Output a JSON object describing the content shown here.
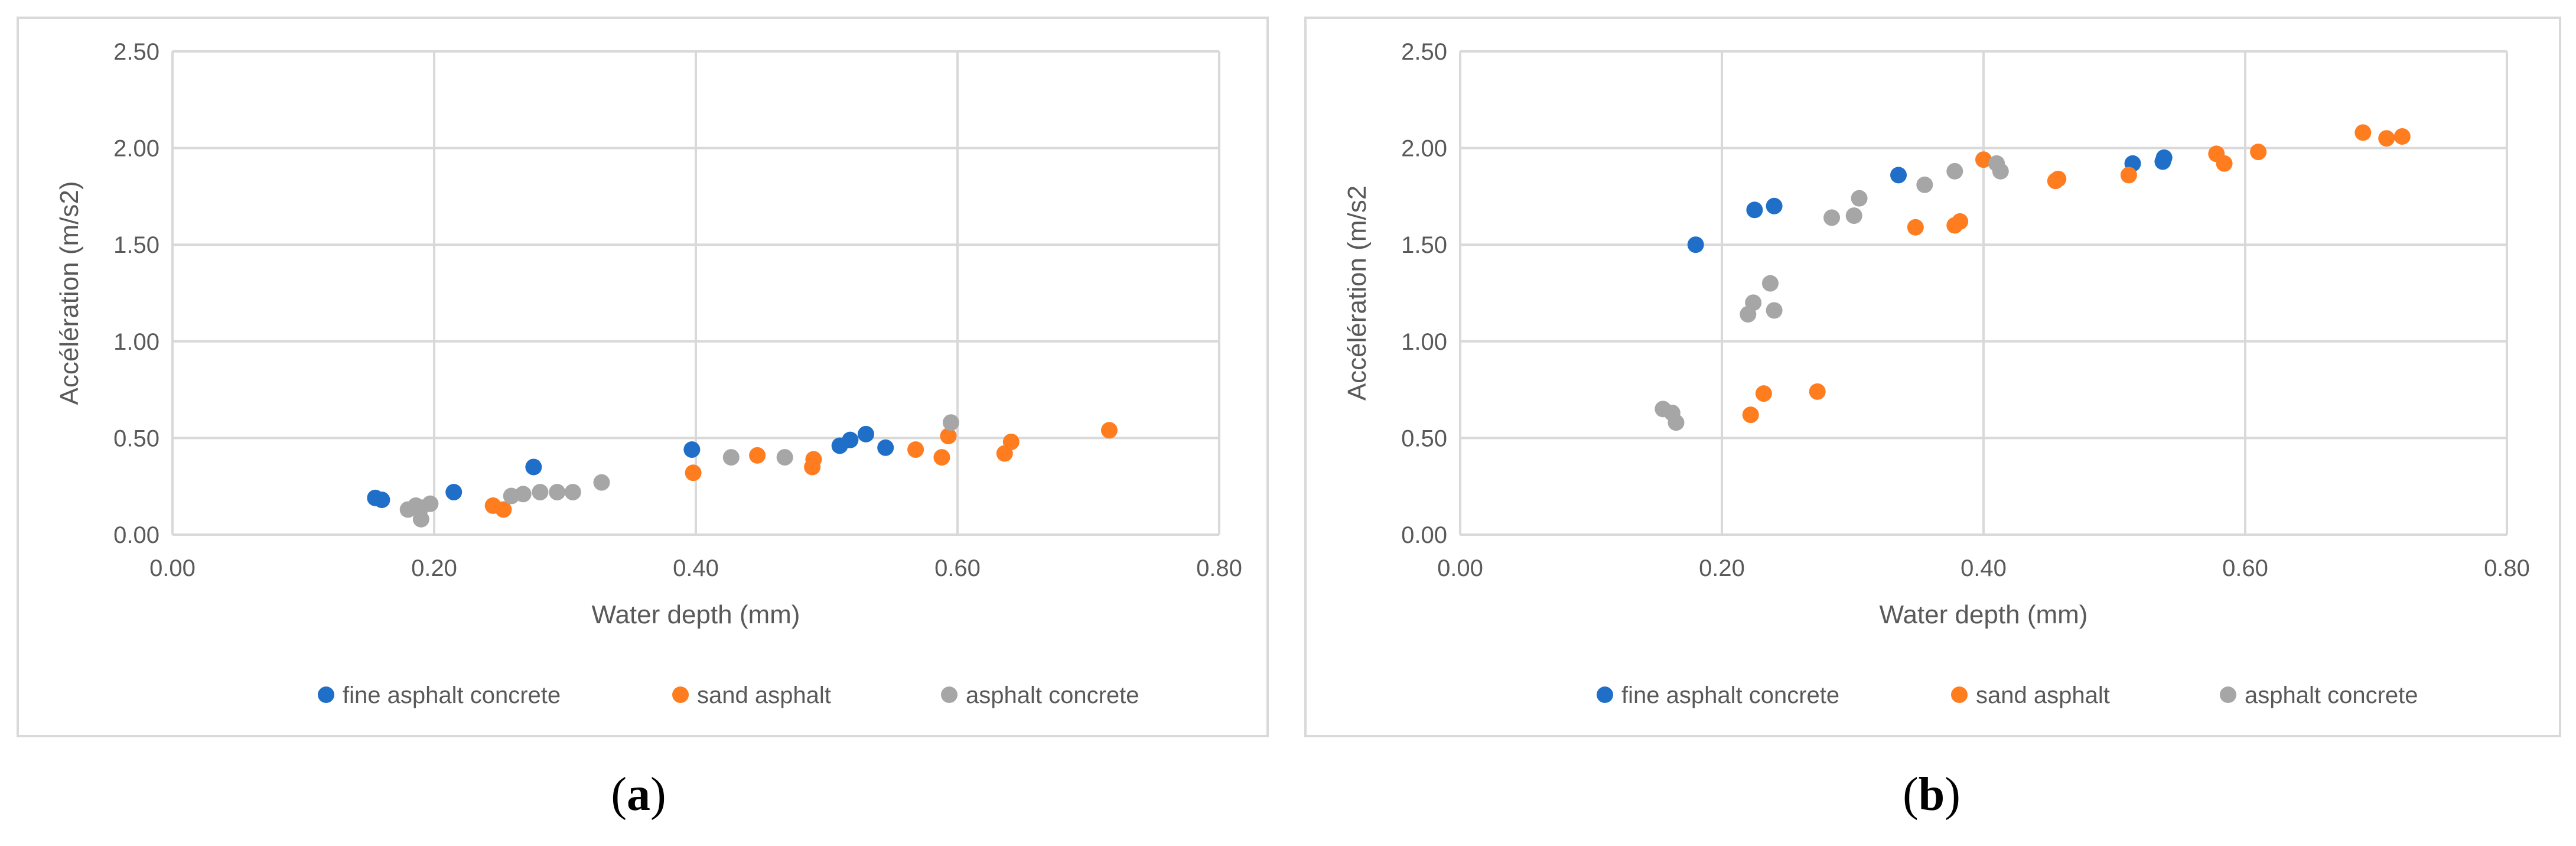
{
  "chart_data": [
    {
      "type": "scatter",
      "panel_label": "a",
      "title": "",
      "xlabel": "Water depth (mm)",
      "ylabel": "Accélération (m/s2)",
      "xlim": [
        0,
        0.8
      ],
      "ylim": [
        0,
        2.5
      ],
      "xticks": [
        "0.00",
        "0.20",
        "0.40",
        "0.60",
        "0.80"
      ],
      "yticks": [
        "0.00",
        "0.50",
        "1.00",
        "1.50",
        "2.00",
        "2.50"
      ],
      "grid": true,
      "legend_position": "bottom",
      "series": [
        {
          "name": "fine asphalt concrete",
          "color": "#1f6fc8",
          "points": [
            [
              0.155,
              0.19
            ],
            [
              0.16,
              0.18
            ],
            [
              0.215,
              0.22
            ],
            [
              0.276,
              0.35
            ],
            [
              0.397,
              0.44
            ],
            [
              0.51,
              0.46
            ],
            [
              0.518,
              0.49
            ],
            [
              0.53,
              0.52
            ],
            [
              0.545,
              0.45
            ]
          ]
        },
        {
          "name": "sand asphalt",
          "color": "#ff7c1f",
          "points": [
            [
              0.245,
              0.15
            ],
            [
              0.253,
              0.13
            ],
            [
              0.398,
              0.32
            ],
            [
              0.447,
              0.41
            ],
            [
              0.489,
              0.35
            ],
            [
              0.49,
              0.39
            ],
            [
              0.568,
              0.44
            ],
            [
              0.588,
              0.4
            ],
            [
              0.593,
              0.51
            ],
            [
              0.636,
              0.42
            ],
            [
              0.641,
              0.48
            ],
            [
              0.716,
              0.54
            ]
          ]
        },
        {
          "name": "asphalt concrete",
          "color": "#a6a6a6",
          "points": [
            [
              0.18,
              0.13
            ],
            [
              0.186,
              0.15
            ],
            [
              0.19,
              0.08
            ],
            [
              0.19,
              0.14
            ],
            [
              0.197,
              0.16
            ],
            [
              0.259,
              0.2
            ],
            [
              0.268,
              0.21
            ],
            [
              0.281,
              0.22
            ],
            [
              0.294,
              0.22
            ],
            [
              0.306,
              0.22
            ],
            [
              0.328,
              0.27
            ],
            [
              0.427,
              0.4
            ],
            [
              0.468,
              0.4
            ],
            [
              0.595,
              0.58
            ]
          ]
        }
      ]
    },
    {
      "type": "scatter",
      "panel_label": "b",
      "title": "",
      "xlabel": "Water depth (mm)",
      "ylabel": "Accélération (m/s2",
      "xlim": [
        0,
        0.8
      ],
      "ylim": [
        0,
        2.5
      ],
      "xticks": [
        "0.00",
        "0.20",
        "0.40",
        "0.60",
        "0.80"
      ],
      "yticks": [
        "0.00",
        "0.50",
        "1.00",
        "1.50",
        "2.00",
        "2.50"
      ],
      "grid": true,
      "legend_position": "bottom",
      "series": [
        {
          "name": "fine asphalt concrete",
          "color": "#1f6fc8",
          "points": [
            [
              0.18,
              1.5
            ],
            [
              0.225,
              1.68
            ],
            [
              0.24,
              1.7
            ],
            [
              0.335,
              1.86
            ],
            [
              0.514,
              1.92
            ],
            [
              0.537,
              1.93
            ],
            [
              0.538,
              1.95
            ]
          ]
        },
        {
          "name": "sand asphalt",
          "color": "#ff7c1f",
          "points": [
            [
              0.222,
              0.62
            ],
            [
              0.232,
              0.73
            ],
            [
              0.273,
              0.74
            ],
            [
              0.348,
              1.59
            ],
            [
              0.378,
              1.6
            ],
            [
              0.382,
              1.62
            ],
            [
              0.4,
              1.94
            ],
            [
              0.455,
              1.83
            ],
            [
              0.457,
              1.84
            ],
            [
              0.511,
              1.86
            ],
            [
              0.578,
              1.97
            ],
            [
              0.584,
              1.92
            ],
            [
              0.61,
              1.98
            ],
            [
              0.69,
              2.08
            ],
            [
              0.708,
              2.05
            ],
            [
              0.72,
              2.06
            ]
          ]
        },
        {
          "name": "asphalt concrete",
          "color": "#a6a6a6",
          "points": [
            [
              0.155,
              0.65
            ],
            [
              0.162,
              0.63
            ],
            [
              0.165,
              0.58
            ],
            [
              0.22,
              1.14
            ],
            [
              0.224,
              1.2
            ],
            [
              0.237,
              1.3
            ],
            [
              0.24,
              1.16
            ],
            [
              0.284,
              1.64
            ],
            [
              0.301,
              1.65
            ],
            [
              0.305,
              1.74
            ],
            [
              0.355,
              1.81
            ],
            [
              0.378,
              1.88
            ],
            [
              0.41,
              1.92
            ],
            [
              0.413,
              1.88
            ]
          ]
        }
      ]
    }
  ],
  "captions": {
    "a": "a",
    "b": "b"
  }
}
